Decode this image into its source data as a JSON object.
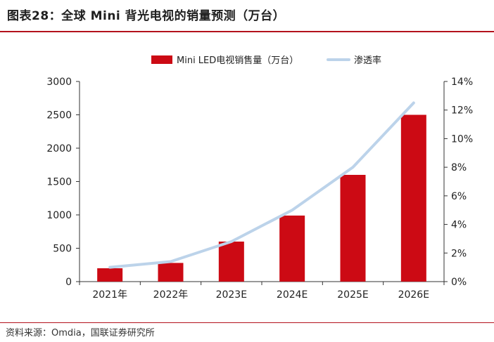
{
  "header": {
    "title": "图表28：全球 Mini 背光电视的销量预测（万台）"
  },
  "footer": {
    "source": "资料来源：Omdia，国联证券研究所"
  },
  "colors": {
    "bar": "#cc0a14",
    "line": "#bcd3ea",
    "axis": "#333333",
    "rule": "#b3121c"
  },
  "chart_data": {
    "type": "bar+line",
    "title": "全球 Mini 背光电视的销量预测（万台）",
    "categories": [
      "2021年",
      "2022年",
      "2023E",
      "2024E",
      "2025E",
      "2026E"
    ],
    "series": [
      {
        "name": "Mini LED电视销售量（万台）",
        "type": "bar",
        "axis": "left",
        "values": [
          200,
          280,
          600,
          990,
          1600,
          2500
        ]
      },
      {
        "name": "渗透率",
        "type": "line",
        "axis": "right",
        "values": [
          1.0,
          1.4,
          2.8,
          5.0,
          8.0,
          12.5
        ]
      }
    ],
    "y_left": {
      "min": 0,
      "max": 3000,
      "ticks": [
        0,
        500,
        1000,
        1500,
        2000,
        2500,
        3000
      ],
      "tick_labels": [
        "0",
        "500",
        "1000",
        "1500",
        "2000",
        "2500",
        "3000"
      ]
    },
    "y_right": {
      "min": 0,
      "max": 14,
      "ticks": [
        0,
        2,
        4,
        6,
        8,
        10,
        12,
        14
      ],
      "tick_labels": [
        "0%",
        "2%",
        "4%",
        "6%",
        "8%",
        "10%",
        "12%",
        "14%"
      ]
    },
    "legend": {
      "position": "top-center",
      "labels": [
        "Mini LED电视销售量（万台）",
        "渗透率"
      ]
    },
    "grid": false
  }
}
